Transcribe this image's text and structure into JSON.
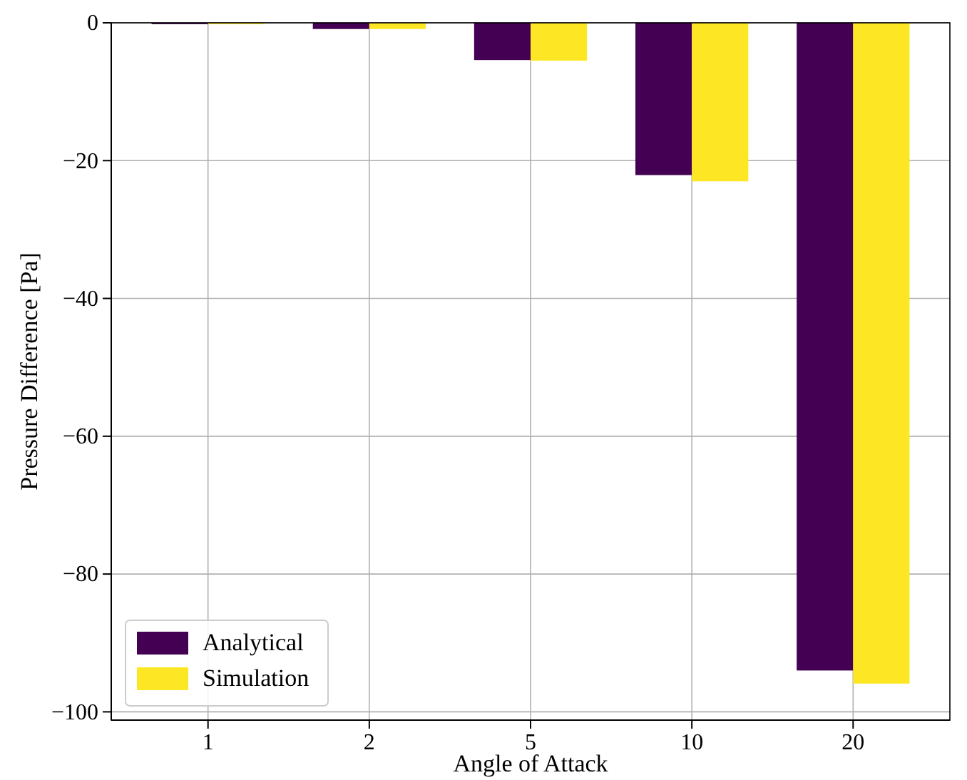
{
  "chart_data": {
    "type": "bar",
    "xlabel": "Angle of Attack",
    "ylabel": "Pressure Difference [Pa]",
    "categories": [
      "1",
      "2",
      "5",
      "10",
      "20"
    ],
    "series": [
      {
        "name": "Analytical",
        "color": "#440154",
        "values": [
          -0.2,
          -0.9,
          -5.4,
          -22.1,
          -94.0
        ]
      },
      {
        "name": "Simulation",
        "color": "#fde725",
        "values": [
          -0.2,
          -0.9,
          -5.5,
          -23.0,
          -95.9
        ]
      }
    ],
    "ylim": [
      -101.2,
      0
    ],
    "yticks": [
      {
        "value": -100,
        "label": "−100"
      },
      {
        "value": -80,
        "label": "−80"
      },
      {
        "value": -60,
        "label": "−60"
      },
      {
        "value": -40,
        "label": "−40"
      },
      {
        "value": -20,
        "label": "−20"
      },
      0
    ],
    "grid": true,
    "legend": "bottom left"
  }
}
